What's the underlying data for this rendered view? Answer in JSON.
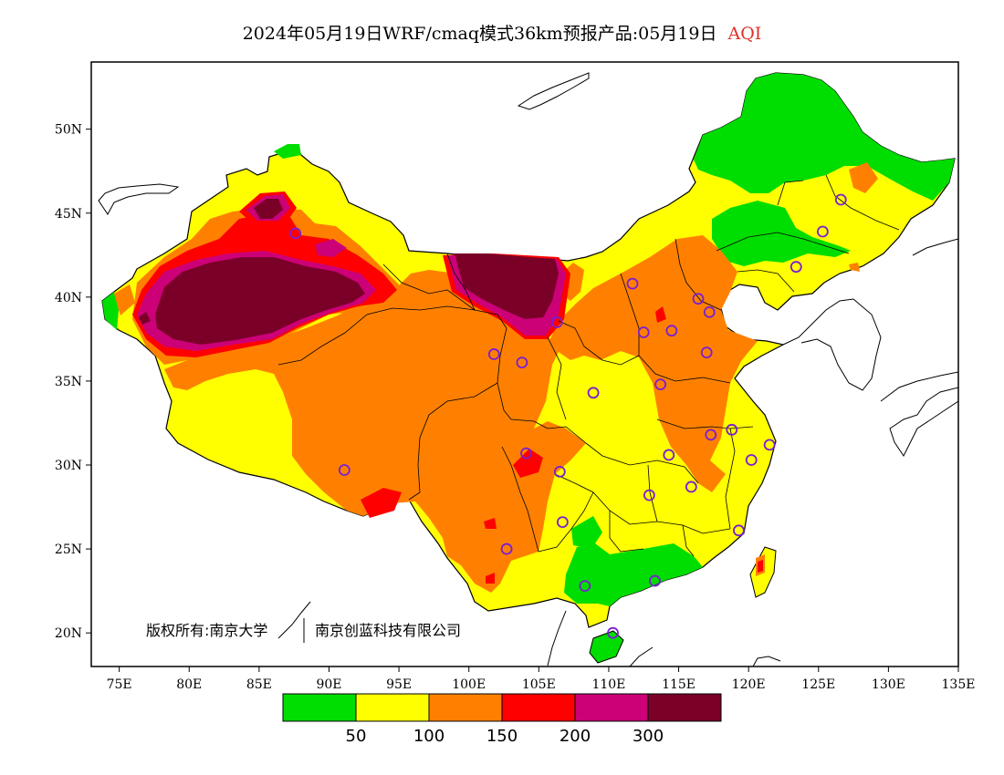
{
  "title": {
    "main": "2024年05月19日WRF/cmaq模式36km预报产品:05月19日",
    "highlight": "AQI"
  },
  "colors": {
    "good": "#00dd00",
    "moderate": "#ffff00",
    "light": "#ff8000",
    "medium": "#ff0000",
    "heavy": "#cc0077",
    "severe": "#7a0028",
    "station": "#7a1fd1",
    "highlight": "#e0302a"
  },
  "map": {
    "lon_range": [
      73,
      135
    ],
    "lat_range": [
      18,
      54
    ],
    "x_ticks": [
      {
        "value": 75,
        "label": "75E"
      },
      {
        "value": 80,
        "label": "80E"
      },
      {
        "value": 85,
        "label": "85E"
      },
      {
        "value": 90,
        "label": "90E"
      },
      {
        "value": 95,
        "label": "95E"
      },
      {
        "value": 100,
        "label": "100E"
      },
      {
        "value": 105,
        "label": "105E"
      },
      {
        "value": 110,
        "label": "110E"
      },
      {
        "value": 115,
        "label": "115E"
      },
      {
        "value": 120,
        "label": "120E"
      },
      {
        "value": 125,
        "label": "125E"
      },
      {
        "value": 130,
        "label": "130E"
      },
      {
        "value": 135,
        "label": "135E"
      }
    ],
    "y_ticks": [
      {
        "value": 20,
        "label": "20N"
      },
      {
        "value": 25,
        "label": "25N"
      },
      {
        "value": 30,
        "label": "30N"
      },
      {
        "value": 35,
        "label": "35N"
      },
      {
        "value": 40,
        "label": "40N"
      },
      {
        "value": 45,
        "label": "45N"
      },
      {
        "value": 50,
        "label": "50N"
      }
    ],
    "copyright": "版权所有:南京大学",
    "company": "南京创蓝科技有限公司",
    "stations": [
      [
        87.6,
        43.8
      ],
      [
        91.1,
        29.7
      ],
      [
        101.8,
        36.6
      ],
      [
        103.8,
        36.1
      ],
      [
        106.3,
        38.5
      ],
      [
        111.7,
        40.8
      ],
      [
        116.4,
        39.9
      ],
      [
        117.2,
        39.1
      ],
      [
        114.5,
        38.0
      ],
      [
        112.5,
        37.9
      ],
      [
        117.0,
        36.7
      ],
      [
        113.7,
        34.8
      ],
      [
        108.9,
        34.3
      ],
      [
        104.1,
        30.7
      ],
      [
        106.5,
        29.6
      ],
      [
        106.7,
        26.6
      ],
      [
        102.7,
        25.0
      ],
      [
        108.3,
        22.8
      ],
      [
        113.3,
        23.1
      ],
      [
        110.3,
        20.0
      ],
      [
        112.9,
        28.2
      ],
      [
        115.9,
        28.7
      ],
      [
        114.3,
        30.6
      ],
      [
        117.3,
        31.8
      ],
      [
        118.8,
        32.1
      ],
      [
        120.2,
        30.3
      ],
      [
        121.5,
        31.2
      ],
      [
        119.3,
        26.1
      ],
      [
        123.4,
        41.8
      ],
      [
        125.3,
        43.9
      ],
      [
        126.6,
        45.8
      ]
    ]
  },
  "legend": {
    "bins": [
      {
        "color": "#00dd00",
        "upper": "50"
      },
      {
        "color": "#ffff00",
        "upper": "100"
      },
      {
        "color": "#ff8000",
        "upper": "150"
      },
      {
        "color": "#ff0000",
        "upper": "200"
      },
      {
        "color": "#cc0077",
        "upper": "300"
      },
      {
        "color": "#7a0028",
        "upper": ""
      }
    ]
  }
}
